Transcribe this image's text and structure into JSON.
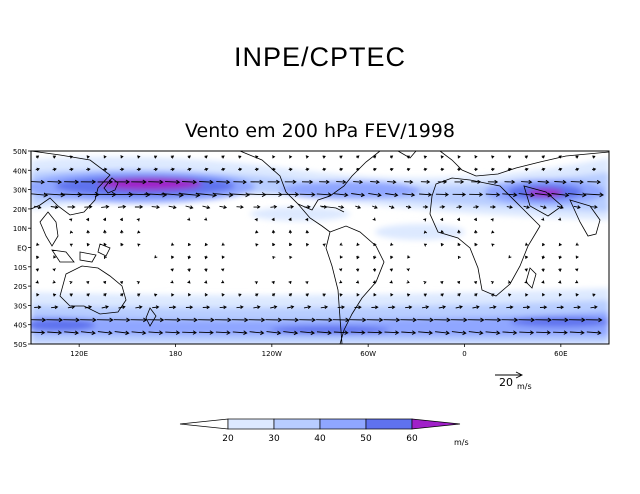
{
  "header": {
    "organization": "INPE/CPTEC",
    "map_title": "Vento em 200 hPa FEV/1998"
  },
  "map": {
    "lat_labels": [
      "50N",
      "40N",
      "30N",
      "20N",
      "10N",
      "EQ",
      "10S",
      "20S",
      "30S",
      "40S",
      "50S"
    ],
    "lat_values": [
      50,
      40,
      30,
      20,
      10,
      0,
      -10,
      -20,
      -30,
      -40,
      -50
    ],
    "lon_labels": [
      "120E",
      "180",
      "120W",
      "60W",
      "0",
      "60E"
    ],
    "lon_values": [
      120,
      180,
      240,
      300,
      360,
      420
    ],
    "lon_range": [
      90,
      450
    ],
    "lat_range": [
      -50,
      50
    ]
  },
  "reference_vector": {
    "value": "20",
    "unit": "m/s"
  },
  "colorbar": {
    "labels": [
      "20",
      "30",
      "40",
      "50",
      "60"
    ],
    "unit": "m/s",
    "colors": [
      "#ffffff",
      "#dde9ff",
      "#b8cdff",
      "#8fa6ff",
      "#5f72ee",
      "#a020c8"
    ]
  },
  "colors": {
    "c20": "#dde9ff",
    "c30": "#b8cdff",
    "c40": "#8fa6ff",
    "c50": "#5f72ee",
    "c60": "#a020c8",
    "coast": "#000000"
  }
}
